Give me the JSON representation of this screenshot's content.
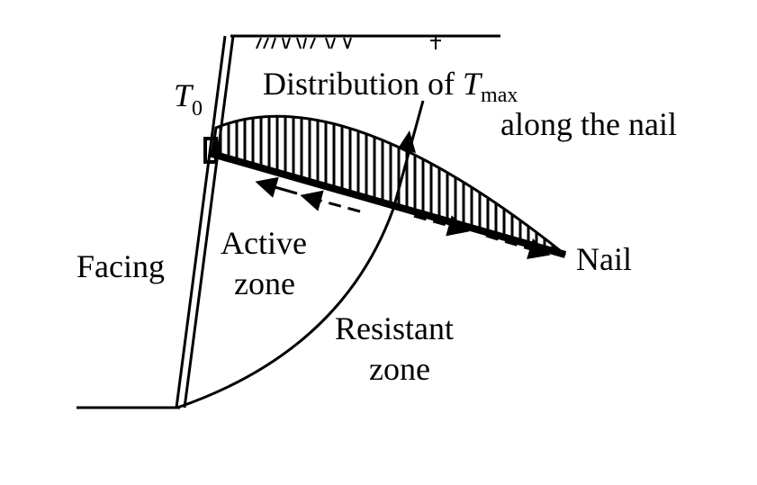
{
  "labels": {
    "t0": {
      "symbol": "T",
      "subscript": "0"
    },
    "distribution": {
      "line1": "Distribution of ",
      "symbol": "T",
      "subscript": "max",
      "line2": "along the nail"
    },
    "facing": "Facing",
    "active_zone": {
      "line1": "Active",
      "line2": "zone"
    },
    "resistant_zone": {
      "line1": "Resistant",
      "line2": "zone"
    },
    "nail": "Nail"
  }
}
